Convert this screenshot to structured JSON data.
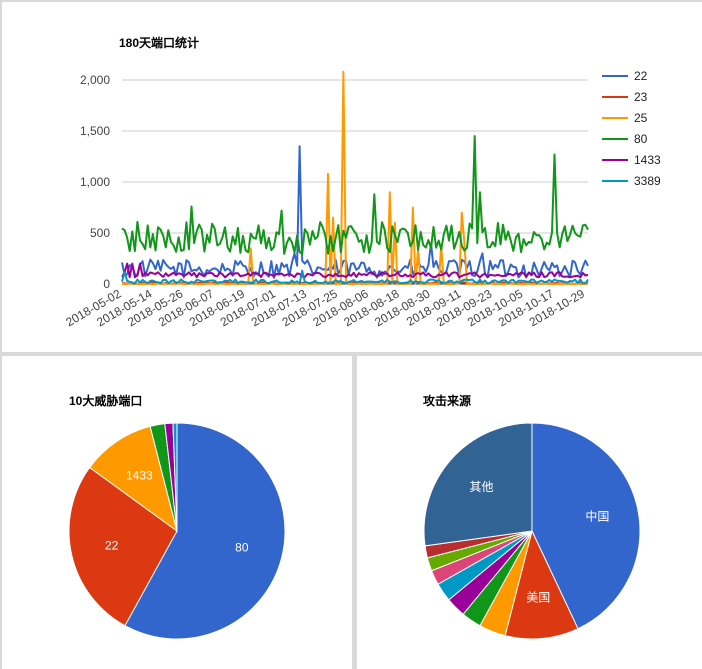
{
  "colors": {
    "22": "#3366cc",
    "23": "#dc3912",
    "25": "#ff9900",
    "80": "#109618",
    "1433": "#990099",
    "3389": "#0099c6"
  },
  "chart_data": [
    {
      "type": "line",
      "title": "180天端口统计",
      "xlabel": "",
      "ylabel": "",
      "ylim": [
        0,
        2000
      ],
      "yticks": [
        "0",
        "500",
        "1,000",
        "1,500",
        "2,000"
      ],
      "grid": true,
      "legend": "right",
      "x_labels": [
        "2018-05-02",
        "2018-05-14",
        "2018-05-26",
        "2018-06-07",
        "2018-06-19",
        "2018-07-01",
        "2018-07-13",
        "2018-07-25",
        "2018-08-06",
        "2018-08-18",
        "2018-08-30",
        "2018-09-11",
        "2018-09-23",
        "2018-10-05",
        "2018-10-17",
        "2018-10-29"
      ],
      "x_start_index": 0,
      "n_points": 182,
      "series": [
        {
          "name": "22",
          "color": "#3366cc",
          "base": 150,
          "noise": 90,
          "spikes": [
            [
              69,
              1350
            ],
            [
              67,
              300
            ],
            [
              120,
              400
            ],
            [
              140,
              300
            ]
          ]
        },
        {
          "name": "23",
          "color": "#dc3912",
          "base": 10,
          "noise": 8,
          "spikes": []
        },
        {
          "name": "25",
          "color": "#ff9900",
          "base": 0,
          "noise": 5,
          "spikes": [
            [
              50,
              350
            ],
            [
              80,
              1080
            ],
            [
              82,
              650
            ],
            [
              86,
              2080
            ],
            [
              104,
              900
            ],
            [
              106,
              600
            ],
            [
              113,
              750
            ],
            [
              115,
              350
            ],
            [
              124,
              380
            ],
            [
              132,
              700
            ],
            [
              133,
              400
            ]
          ]
        },
        {
          "name": "80",
          "color": "#109618",
          "base": 450,
          "noise": 160,
          "spikes": [
            [
              27,
              760
            ],
            [
              62,
              720
            ],
            [
              74,
              520
            ],
            [
              98,
              880
            ],
            [
              137,
              1450
            ],
            [
              139,
              900
            ],
            [
              168,
              1270
            ],
            [
              169,
              500
            ]
          ]
        },
        {
          "name": "1433",
          "color": "#990099",
          "base": 90,
          "noise": 25,
          "spikes": [
            [
              2,
              200
            ],
            [
              4,
              200
            ],
            [
              7,
              200
            ]
          ]
        },
        {
          "name": "3389",
          "color": "#0099c6",
          "base": 25,
          "noise": 20,
          "spikes": [
            [
              1,
              120
            ],
            [
              70,
              130
            ]
          ]
        }
      ]
    },
    {
      "type": "pie",
      "title": "10大威胁端口",
      "slices": [
        {
          "label": "80",
          "value": 58.0,
          "color": "#3366cc",
          "show_label": true
        },
        {
          "label": "22",
          "value": 27.0,
          "color": "#dc3912",
          "show_label": true
        },
        {
          "label": "1433",
          "value": 11.0,
          "color": "#ff9900",
          "show_label": true
        },
        {
          "label": "",
          "value": 2.2,
          "color": "#109618",
          "show_label": false
        },
        {
          "label": "",
          "value": 1.2,
          "color": "#990099",
          "show_label": false
        },
        {
          "label": "",
          "value": 0.6,
          "color": "#0099c6",
          "show_label": false
        }
      ]
    },
    {
      "type": "pie",
      "title": "攻击来源",
      "slices": [
        {
          "label": "中国",
          "value": 43.0,
          "color": "#3366cc",
          "show_label": true
        },
        {
          "label": "美国",
          "value": 11.0,
          "color": "#dc3912",
          "show_label": true
        },
        {
          "label": "",
          "value": 4.0,
          "color": "#ff9900",
          "show_label": false
        },
        {
          "label": "",
          "value": 3.0,
          "color": "#109618",
          "show_label": false
        },
        {
          "label": "",
          "value": 3.0,
          "color": "#990099",
          "show_label": false
        },
        {
          "label": "",
          "value": 2.8,
          "color": "#0099c6",
          "show_label": false
        },
        {
          "label": "",
          "value": 2.2,
          "color": "#dd4477",
          "show_label": false
        },
        {
          "label": "",
          "value": 2.0,
          "color": "#66aa00",
          "show_label": false
        },
        {
          "label": "",
          "value": 1.8,
          "color": "#b82e2e",
          "show_label": false
        },
        {
          "label": "其他",
          "value": 27.2,
          "color": "#316395",
          "show_label": true
        }
      ]
    }
  ]
}
